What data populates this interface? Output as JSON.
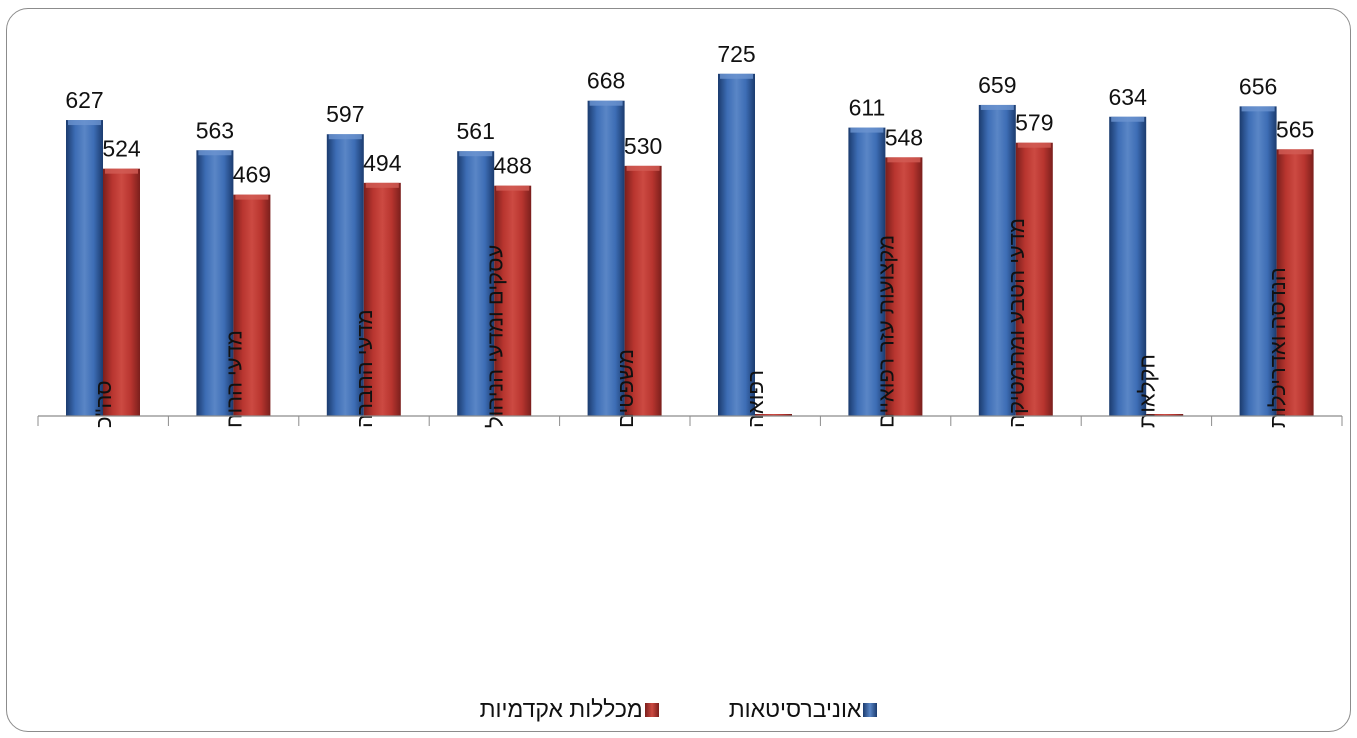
{
  "chart_data": {
    "type": "bar",
    "categories": [
      "סה\"כ",
      "מדעי הרוח",
      "מדעי החברה",
      "עסקים ומדעי הניהול",
      "משפטים",
      "רפואה",
      "מקצועות עזר רפואיים",
      "מדעי הטבע ומתמטיקה",
      "חקלאות",
      "הנדסה ואדריכלות"
    ],
    "series": [
      {
        "name": "אוניברסיטאות",
        "color": "#2f5a9a",
        "values": [
          627,
          563,
          597,
          561,
          668,
          725,
          611,
          659,
          634,
          656
        ],
        "labels": [
          "627",
          "563",
          "597",
          "561",
          "668",
          "725",
          "611",
          "659",
          "634",
          "656"
        ]
      },
      {
        "name": "מכללות אקדמיות",
        "color": "#b2302c",
        "values": [
          524,
          469,
          494,
          488,
          530,
          0,
          548,
          579,
          0,
          565
        ],
        "labels": [
          "524",
          "469",
          "494",
          "488",
          "530",
          "",
          "548",
          "579",
          "",
          "565"
        ]
      }
    ],
    "ylim": [
      0,
      800
    ],
    "grid": false,
    "legend_position": "bottom"
  }
}
